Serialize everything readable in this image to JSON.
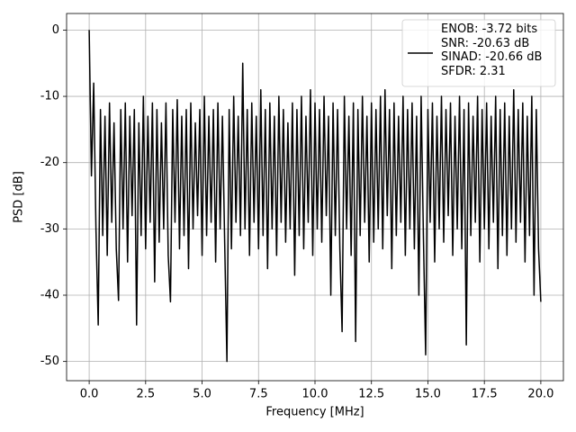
{
  "chart_data": {
    "type": "line",
    "xlabel": "Frequency [MHz]",
    "ylabel": "PSD [dB]",
    "x": [
      0,
      0.1,
      0.2,
      0.3,
      0.4,
      0.5,
      0.6,
      0.7,
      0.8,
      0.9,
      1,
      1.1,
      1.2,
      1.3,
      1.4,
      1.5,
      1.6,
      1.7,
      1.8,
      1.9,
      2,
      2.1,
      2.2,
      2.3,
      2.4,
      2.5,
      2.6,
      2.7,
      2.8,
      2.9,
      3,
      3.1,
      3.2,
      3.3,
      3.4,
      3.5,
      3.6,
      3.7,
      3.8,
      3.9,
      4,
      4.1,
      4.2,
      4.3,
      4.4,
      4.5,
      4.6,
      4.7,
      4.8,
      4.9,
      5,
      5.1,
      5.2,
      5.3,
      5.4,
      5.5,
      5.6,
      5.7,
      5.8,
      5.9,
      6,
      6.1,
      6.2,
      6.3,
      6.4,
      6.5,
      6.6,
      6.7,
      6.8,
      6.9,
      7,
      7.1,
      7.2,
      7.3,
      7.4,
      7.5,
      7.6,
      7.7,
      7.8,
      7.9,
      8,
      8.1,
      8.2,
      8.3,
      8.4,
      8.5,
      8.6,
      8.7,
      8.8,
      8.9,
      9,
      9.1,
      9.2,
      9.3,
      9.4,
      9.5,
      9.6,
      9.7,
      9.8,
      9.9,
      10,
      10.1,
      10.2,
      10.3,
      10.4,
      10.5,
      10.6,
      10.7,
      10.8,
      10.9,
      11,
      11.1,
      11.2,
      11.3,
      11.4,
      11.5,
      11.6,
      11.7,
      11.8,
      11.9,
      12,
      12.1,
      12.2,
      12.3,
      12.4,
      12.5,
      12.6,
      12.7,
      12.8,
      12.9,
      13,
      13.1,
      13.2,
      13.3,
      13.4,
      13.5,
      13.6,
      13.7,
      13.8,
      13.9,
      14,
      14.1,
      14.2,
      14.3,
      14.4,
      14.5,
      14.6,
      14.7,
      14.8,
      14.9,
      15,
      15.1,
      15.2,
      15.3,
      15.4,
      15.5,
      15.6,
      15.7,
      15.8,
      15.9,
      16,
      16.1,
      16.2,
      16.3,
      16.4,
      16.5,
      16.6,
      16.7,
      16.8,
      16.9,
      17,
      17.1,
      17.2,
      17.3,
      17.4,
      17.5,
      17.6,
      17.7,
      17.8,
      17.9,
      18,
      18.1,
      18.2,
      18.3,
      18.4,
      18.5,
      18.6,
      18.7,
      18.8,
      18.9,
      19,
      19.1,
      19.2,
      19.3,
      19.4,
      19.5,
      19.6,
      19.7,
      19.8,
      19.9,
      20
    ],
    "series": [
      {
        "name": "ENOB: -3.72 bits\nSNR: -20.63 dB\nSINAD: -20.66 dB\nSFDR: 2.31",
        "color": "#000000",
        "values": [
          0,
          -22,
          -8,
          -30,
          -44.5,
          -12,
          -31,
          -13,
          -34,
          -11,
          -29,
          -14,
          -33,
          -40.8,
          -12,
          -30,
          -11,
          -35,
          -13,
          -28,
          -12,
          -44.5,
          -14,
          -31,
          -10,
          -33,
          -13,
          -29,
          -11,
          -38,
          -12,
          -32,
          -14,
          -30,
          -11,
          -34,
          -41,
          -12,
          -29,
          -10.5,
          -33,
          -13,
          -31,
          -12,
          -36,
          -11,
          -30,
          -14,
          -28,
          -12,
          -34,
          -10,
          -31,
          -13,
          -29,
          -12,
          -35,
          -11,
          -30,
          -13,
          -32,
          -50,
          -12,
          -33,
          -10,
          -29,
          -13,
          -31,
          -5,
          -30,
          -12,
          -34,
          -11,
          -29,
          -13,
          -33,
          -9,
          -31,
          -12,
          -36,
          -11,
          -30,
          -13,
          -34,
          -10,
          -29,
          -12,
          -32,
          -14,
          -30,
          -11,
          -37,
          -12,
          -31,
          -10,
          -33,
          -13,
          -29,
          -9,
          -34,
          -11,
          -30,
          -12,
          -32,
          -10,
          -28,
          -13,
          -40,
          -11,
          -31,
          -12,
          -33,
          -45.5,
          -10,
          -30,
          -13,
          -34,
          -11,
          -47,
          -12,
          -31,
          -10,
          -29,
          -13,
          -35,
          -11,
          -32,
          -12,
          -30,
          -10,
          -33,
          -9,
          -28,
          -12,
          -36,
          -11,
          -31,
          -13,
          -29,
          -10,
          -34,
          -12,
          -30,
          -11,
          -33,
          -13,
          -40,
          -10,
          -31,
          -49,
          -12,
          -29,
          -11,
          -35,
          -13,
          -30,
          -10,
          -32,
          -12,
          -28,
          -11,
          -34,
          -13,
          -30,
          -10,
          -33,
          -12,
          -47.5,
          -11,
          -31,
          -13,
          -29,
          -10,
          -35,
          -12,
          -30,
          -11,
          -33,
          -13,
          -29,
          -10,
          -36,
          -12,
          -31,
          -11,
          -34,
          -13,
          -30,
          -9,
          -32,
          -12,
          -29,
          -11,
          -35,
          -13,
          -31,
          -10,
          -40,
          -12,
          -33,
          -41
        ]
      }
    ],
    "xlim": [
      -1,
      21
    ],
    "ylim": [
      -52.9,
      2.5
    ],
    "xticks": [
      {
        "value": 0,
        "label": "0.0"
      },
      {
        "value": 2.5,
        "label": "2.5"
      },
      {
        "value": 5,
        "label": "5.0"
      },
      {
        "value": 7.5,
        "label": "7.5"
      },
      {
        "value": 10,
        "label": "10.0"
      },
      {
        "value": 12.5,
        "label": "12.5"
      },
      {
        "value": 15,
        "label": "15.0"
      },
      {
        "value": 17.5,
        "label": "17.5"
      },
      {
        "value": 20,
        "label": "20.0"
      }
    ],
    "yticks": [
      0,
      -10,
      -20,
      -30,
      -40,
      -50
    ],
    "grid": true,
    "legend": "upper right"
  }
}
